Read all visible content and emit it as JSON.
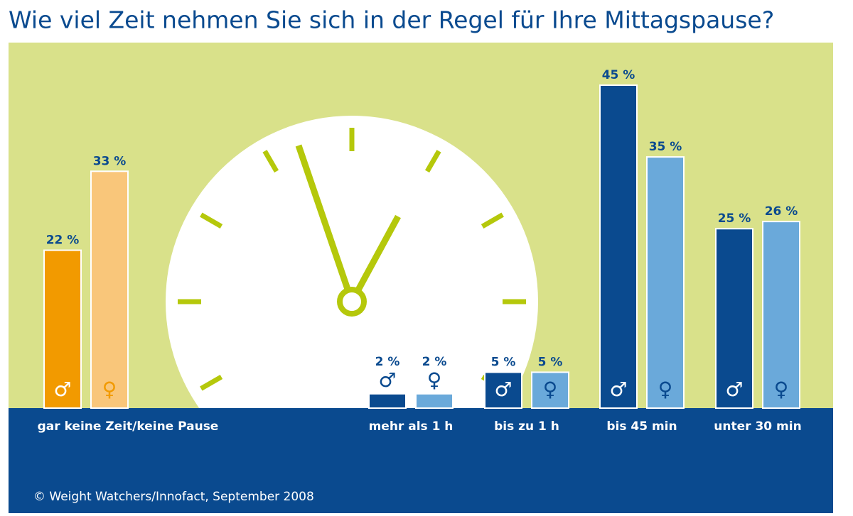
{
  "chart_data": {
    "type": "bar",
    "title": "Wie viel Zeit nehmen Sie sich in der Regel für Ihre Mittagspause?",
    "categories": [
      "gar keine Zeit/keine Pause",
      "mehr als 1 h",
      "bis zu 1 h",
      "bis 45 min",
      "unter 30 min"
    ],
    "series": [
      {
        "name": "♂",
        "colors": [
          "#f29a00",
          "#0a4a8f",
          "#0a4a8f",
          "#0a4a8f",
          "#0a4a8f"
        ],
        "values": [
          22,
          2,
          5,
          45,
          25
        ],
        "value_labels": [
          "22 %",
          "2 %",
          "5 %",
          "45 %",
          "25 %"
        ]
      },
      {
        "name": "♀",
        "colors": [
          "#f9c67a",
          "#6aa9da",
          "#6aa9da",
          "#6aa9da",
          "#6aa9da"
        ],
        "values": [
          33,
          2,
          5,
          35,
          26
        ],
        "value_labels": [
          "33 %",
          "2 %",
          "5 %",
          "35 %",
          "26 %"
        ]
      }
    ],
    "source": "© Weight Watchers/Innofact, September 2008"
  }
}
